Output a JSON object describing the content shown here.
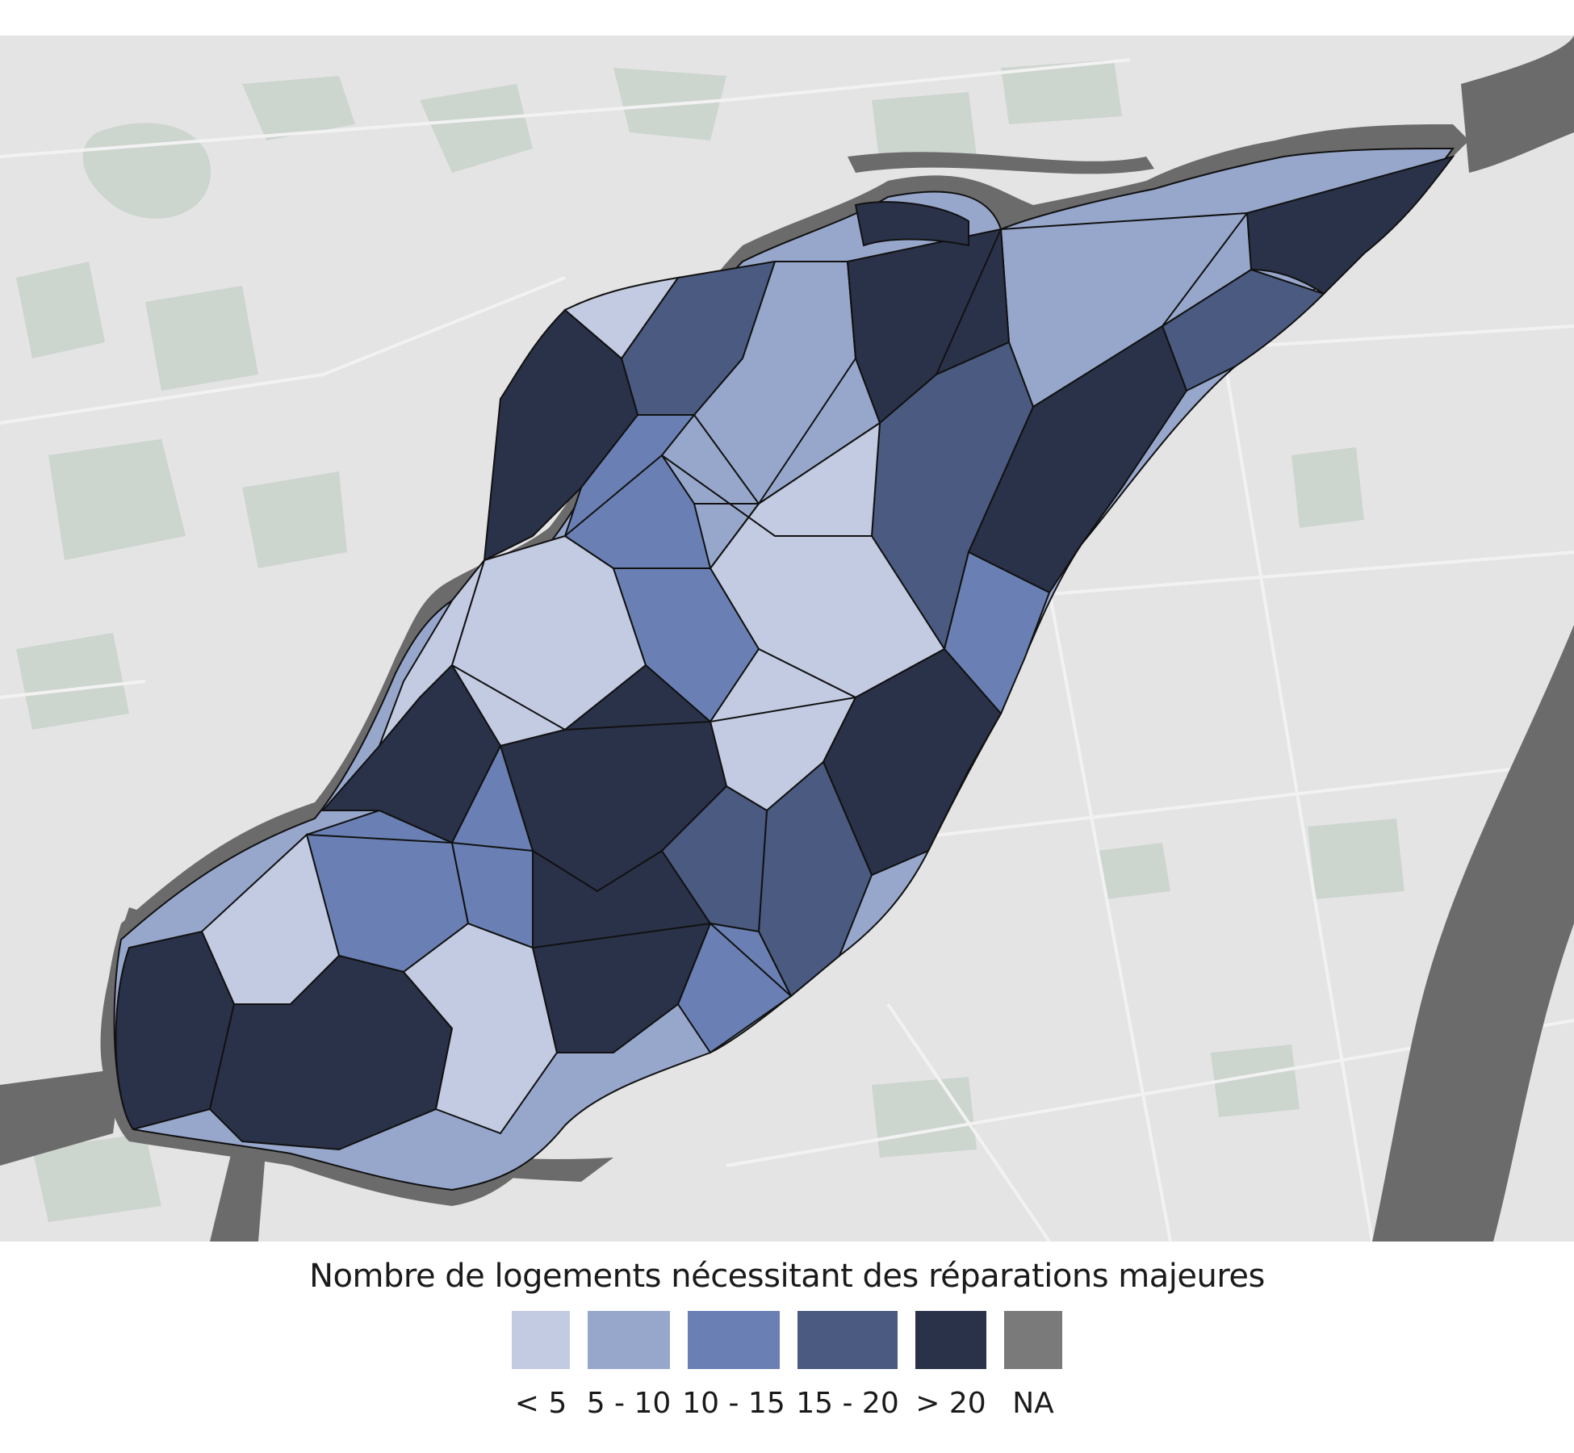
{
  "legend": {
    "title": "Nombre de logements nécessitant des réparations majeures",
    "classes": [
      {
        "label": "< 5",
        "color": "#c3cbe2"
      },
      {
        "label": "5 - 10",
        "color": "#97a7cc"
      },
      {
        "label": "10 - 15",
        "color": "#6a80b4"
      },
      {
        "label": "15 - 20",
        "color": "#4a5a80"
      },
      {
        "label": "> 20",
        "color": "#2a3249"
      },
      {
        "label": "NA",
        "color": "#7a7a7a"
      }
    ]
  },
  "map_colors": {
    "land": "#e4e4e4",
    "park": "#cdd5cf",
    "water": "#6b6b6b",
    "road": "#f2f2f2",
    "boundary": "#111111"
  }
}
